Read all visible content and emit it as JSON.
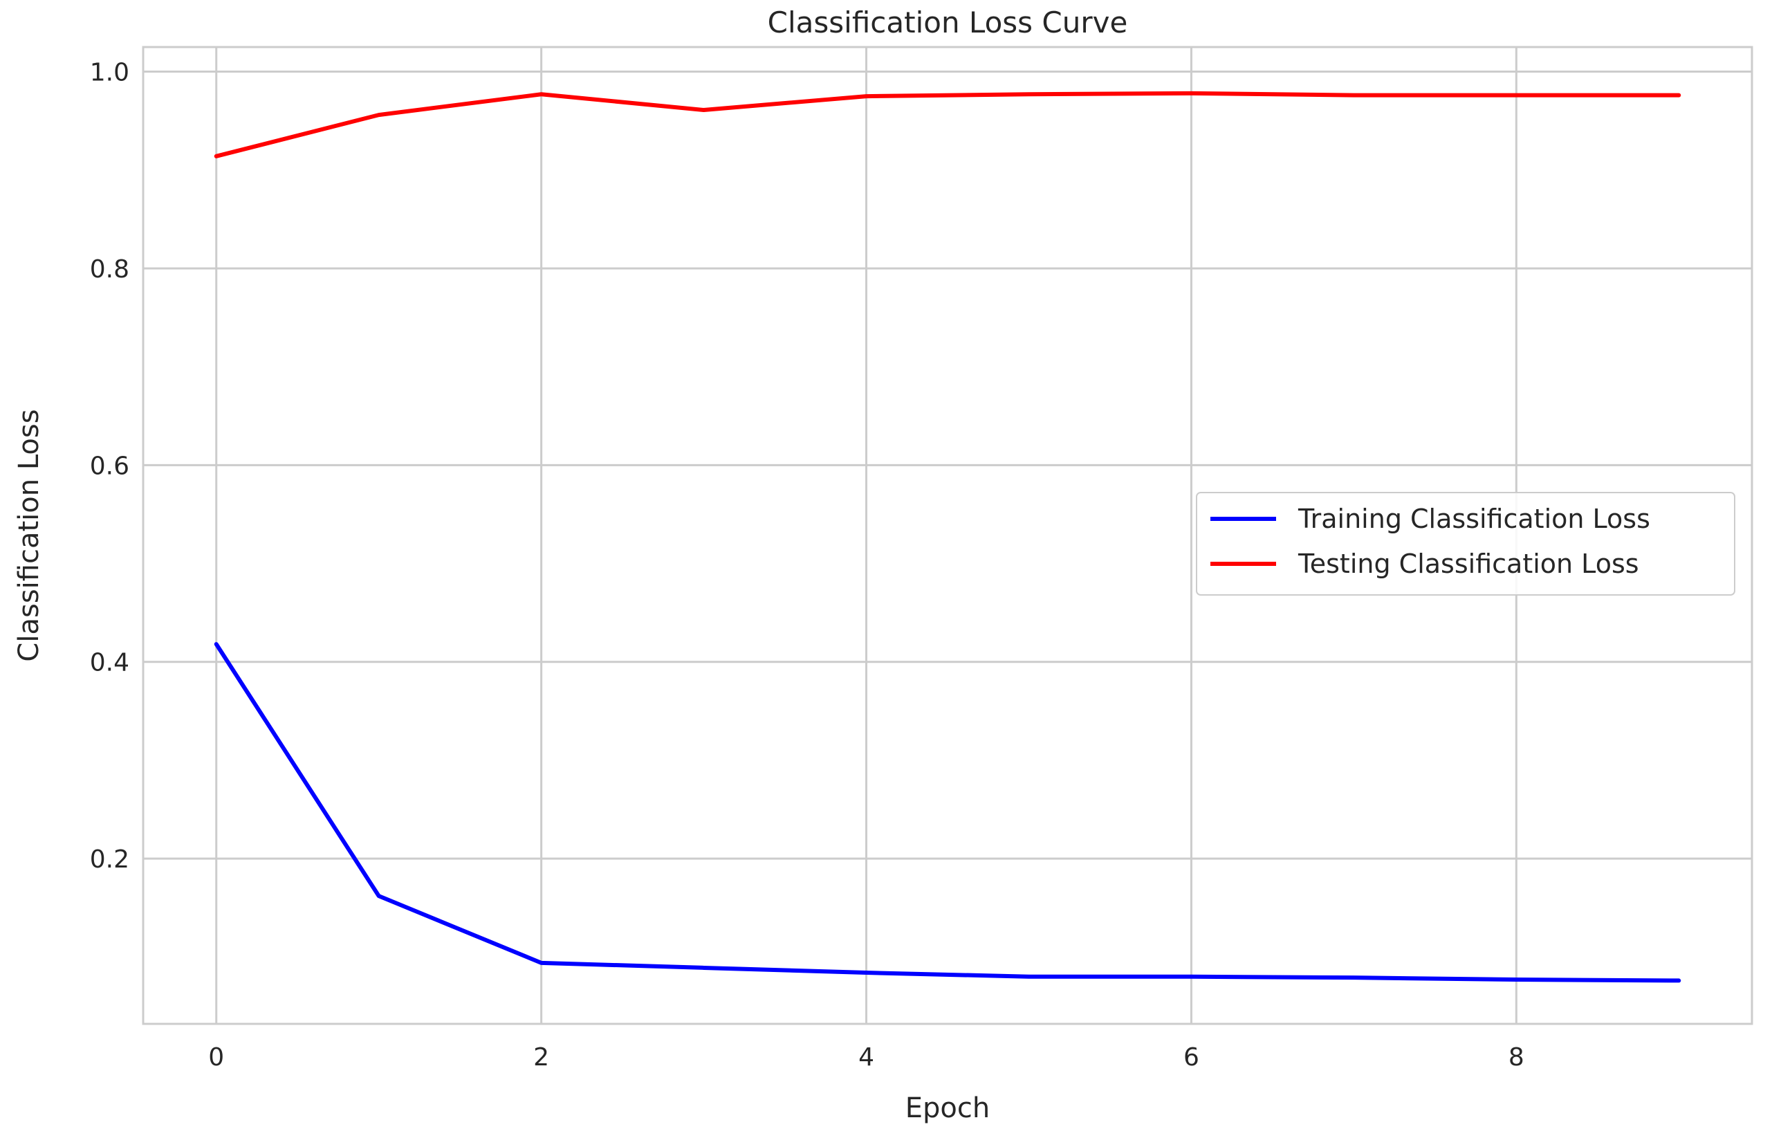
{
  "chart_data": {
    "type": "line",
    "title": "Classification Loss Curve",
    "xlabel": "Epoch",
    "ylabel": "Classification Loss",
    "x": [
      0,
      1,
      2,
      3,
      4,
      5,
      6,
      7,
      8,
      9
    ],
    "xlim": [
      -0.45,
      9.45
    ],
    "ylim": [
      0.032,
      1.025
    ],
    "xticks": [
      0,
      2,
      4,
      6,
      8
    ],
    "xtick_labels": [
      "0",
      "2",
      "4",
      "6",
      "8"
    ],
    "yticks": [
      0.2,
      0.4,
      0.6,
      0.8,
      1.0
    ],
    "ytick_labels": [
      "0.2",
      "0.4",
      "0.6",
      "0.8",
      "1.0"
    ],
    "grid": true,
    "legend_position": "center-right",
    "series": [
      {
        "name": "Training Classification Loss",
        "color": "#0000ff",
        "values": [
          0.418,
          0.162,
          0.094,
          0.089,
          0.084,
          0.08,
          0.08,
          0.079,
          0.077,
          0.076
        ]
      },
      {
        "name": "Testing Classification Loss",
        "color": "#ff0000",
        "values": [
          0.914,
          0.956,
          0.977,
          0.961,
          0.975,
          0.977,
          0.978,
          0.976,
          0.976,
          0.976
        ]
      }
    ]
  }
}
